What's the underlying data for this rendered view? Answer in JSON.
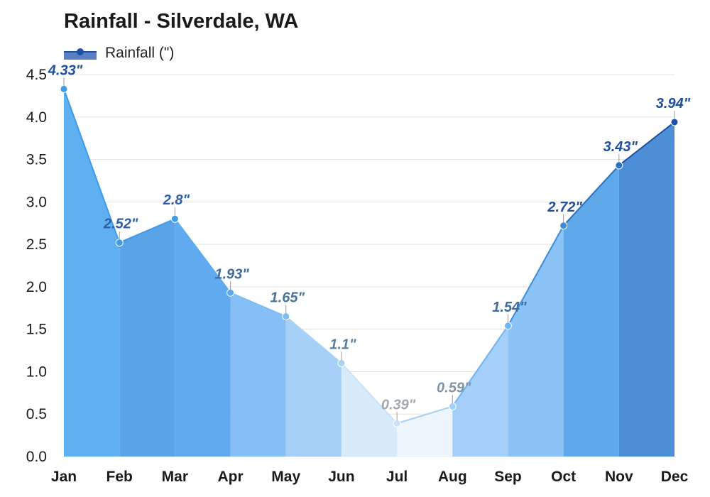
{
  "chart_data": {
    "type": "area",
    "title": "Rainfall - Silverdale, WA",
    "xlabel": "",
    "ylabel": "",
    "categories": [
      "Jan",
      "Feb",
      "Mar",
      "Apr",
      "May",
      "Jun",
      "Jul",
      "Aug",
      "Sep",
      "Oct",
      "Nov",
      "Dec"
    ],
    "series": [
      {
        "name": "Rainfall (\")",
        "values": [
          4.33,
          2.52,
          2.8,
          1.93,
          1.65,
          1.1,
          0.39,
          0.59,
          1.54,
          2.72,
          3.43,
          3.94
        ],
        "data_labels": [
          "4.33\"",
          "2.52\"",
          "2.8\"",
          "1.93\"",
          "1.65\"",
          "1.1\"",
          "0.39\"",
          "0.59\"",
          "1.54\"",
          "2.72\"",
          "3.43\"",
          "3.94\""
        ]
      }
    ],
    "ylim": [
      0,
      4.5
    ],
    "yticks": [
      "0.0",
      "0.5",
      "1.0",
      "1.5",
      "2.0",
      "2.5",
      "3.0",
      "3.5",
      "4.0",
      "4.5"
    ],
    "grid": true,
    "legend_position": "top-left",
    "colors": {
      "month_fill": [
        "#5fb0f0",
        "#5aa3e6",
        "#62aaf0",
        "#86bff5",
        "#a6d0f7",
        "#d8ebfb",
        "#eef6fd",
        "#a3cff8",
        "#8cc3f6",
        "#5fa8ea",
        "#4d8fd6",
        "#5878bd"
      ],
      "month_line": [
        "#3d9be9",
        "#3d9be9",
        "#3d9be9",
        "#5aaaf0",
        "#7dbcf2",
        "#a8d2f6",
        "#c9e2f9",
        "#a3cff8",
        "#6fb3f0",
        "#3b8cdd",
        "#2f6fc0",
        "#1f4fa0"
      ],
      "month_label": [
        "#1f4fa0",
        "#2f5fa8",
        "#2f5fa8",
        "#3f6c9c",
        "#4a739a",
        "#5a7f9f",
        "#a0a8b0",
        "#7f95a8",
        "#3f6c9c",
        "#1f4fa0",
        "#1f4fa0",
        "#1f4fa0"
      ],
      "legend_fill": "#5b7fc4",
      "legend_line": "#1f4fa0"
    }
  }
}
